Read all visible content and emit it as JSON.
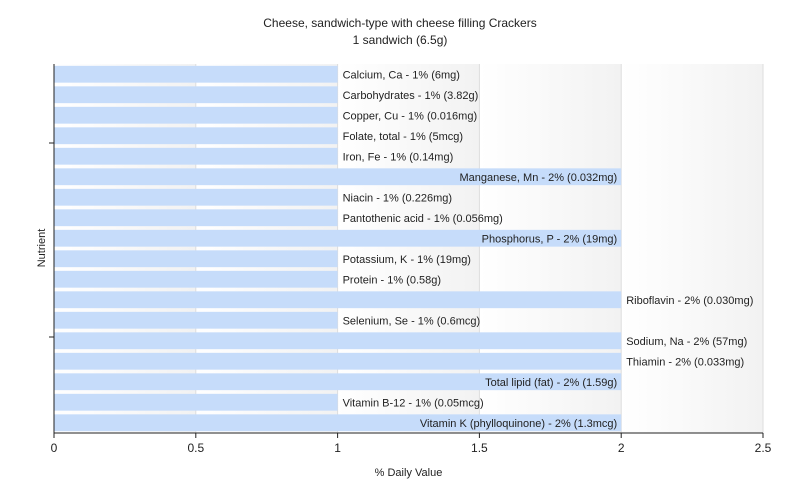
{
  "chart_data": {
    "type": "bar",
    "orientation": "horizontal",
    "title": "Cheese, sandwich-type with cheese filling Crackers",
    "subtitle": "1 sandwich (6.5g)",
    "xlabel": "% Daily Value",
    "ylabel": "Nutrient",
    "xlim": [
      0,
      2.5
    ],
    "xticks": [
      "0",
      "0.5",
      "1",
      "1.5",
      "2",
      "2.5"
    ],
    "grid": true,
    "bar_color": "#c6dcfa",
    "categories": [
      "Calcium, Ca",
      "Carbohydrates",
      "Copper, Cu",
      "Folate, total",
      "Iron, Fe",
      "Manganese, Mn",
      "Niacin",
      "Pantothenic acid",
      "Phosphorus, P",
      "Potassium, K",
      "Protein",
      "Riboflavin",
      "Selenium, Se",
      "Sodium, Na",
      "Thiamin",
      "Total lipid (fat)",
      "Vitamin B-12",
      "Vitamin K (phylloquinone)"
    ],
    "values": [
      1,
      1,
      1,
      1,
      1,
      2,
      1,
      1,
      2,
      1,
      1,
      2,
      1,
      2,
      2,
      2,
      1,
      2
    ],
    "labels": [
      "Calcium, Ca - 1% (6mg)",
      "Carbohydrates - 1% (3.82g)",
      "Copper, Cu - 1% (0.016mg)",
      "Folate, total - 1% (5mcg)",
      "Iron, Fe - 1% (0.14mg)",
      "Manganese, Mn - 2% (0.032mg)",
      "Niacin - 1% (0.226mg)",
      "Pantothenic acid - 1% (0.056mg)",
      "Phosphorus, P - 2% (19mg)",
      "Potassium, K - 1% (19mg)",
      "Protein - 1% (0.58g)",
      "Riboflavin - 2% (0.030mg)",
      "Selenium, Se - 1% (0.6mcg)",
      "Sodium, Na - 2% (57mg)",
      "Thiamin - 2% (0.033mg)",
      "Total lipid (fat) - 2% (1.59g)",
      "Vitamin B-12 - 1% (0.05mcg)",
      "Vitamin K (phylloquinone) - 2% (1.3mcg)"
    ],
    "label_inside": [
      false,
      false,
      false,
      false,
      false,
      true,
      false,
      false,
      true,
      false,
      false,
      false,
      false,
      false,
      false,
      true,
      false,
      true
    ]
  }
}
